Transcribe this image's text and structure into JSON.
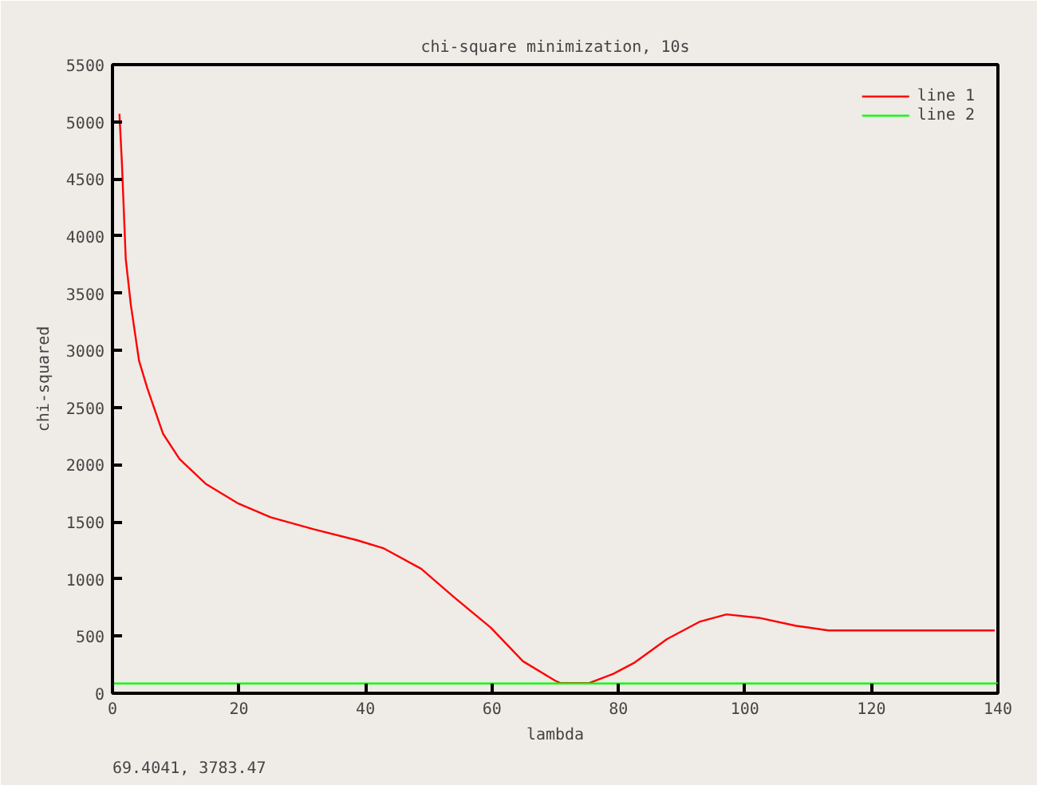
{
  "chart_data": {
    "type": "line",
    "title": "chi-square minimization, 10s",
    "xlabel": "lambda",
    "ylabel": "chi-squared",
    "annotations": [
      "69.4041,  3783.47"
    ],
    "xlim": [
      0,
      140
    ],
    "xticks": [
      0,
      20,
      40,
      60,
      80,
      100,
      120,
      140
    ],
    "ylim": [
      0,
      5500
    ],
    "yticks": [
      0,
      500,
      1000,
      1500,
      2000,
      2500,
      3000,
      3500,
      4000,
      4500,
      5000,
      5500
    ],
    "grid": false,
    "legend": "top right",
    "line_style": "solid",
    "marker": "none",
    "series": [
      {
        "name": "line 1",
        "color": "#ff0000",
        "x": [
          1.1,
          1.5,
          2.1,
          2.9,
          4.2,
          5.5,
          8.0,
          10.6,
          14.8,
          19.9,
          25,
          31.8,
          38.6,
          42.8,
          48.8,
          53.9,
          59.8,
          64.9,
          70,
          70.8,
          75.4,
          79.2,
          82.6,
          87.7,
          92.8,
          97.1,
          102.2,
          108.1,
          113.2,
          139.5
        ],
        "values": [
          5070,
          4630,
          3800,
          3400,
          2910,
          2670,
          2270,
          2050,
          1830,
          1660,
          1540,
          1435,
          1340,
          1270,
          1090,
          845,
          575,
          280,
          110,
          90,
          90,
          170,
          270,
          475,
          625,
          690,
          660,
          590,
          550,
          550
        ]
      },
      {
        "name": "line 2",
        "color": "#00ff00",
        "x": [
          0,
          140
        ],
        "values": [
          85,
          85
        ]
      }
    ]
  }
}
